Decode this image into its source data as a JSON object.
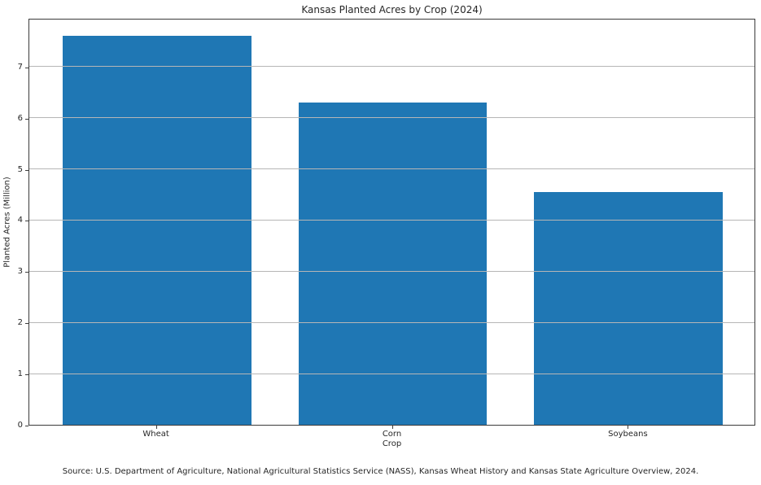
{
  "chart_data": {
    "type": "bar",
    "title": "Kansas Planted Acres by Crop (2024)",
    "xlabel": "Crop",
    "ylabel": "Planted Acres (Million)",
    "categories": [
      "Wheat",
      "Corn",
      "Soybeans"
    ],
    "values": [
      7.6,
      6.3,
      4.55
    ],
    "ylim": [
      0,
      7.95
    ],
    "yticks": [
      0,
      1,
      2,
      3,
      4,
      5,
      6,
      7
    ],
    "grid": true,
    "legend": "none",
    "bar_color": "#1f77b4",
    "grid_color": "#b6b6b6"
  },
  "footer": {
    "source": "Source: U.S. Department of Agriculture, National Agricultural Statistics Service (NASS), Kansas Wheat History and Kansas State Agriculture Overview, 2024."
  }
}
